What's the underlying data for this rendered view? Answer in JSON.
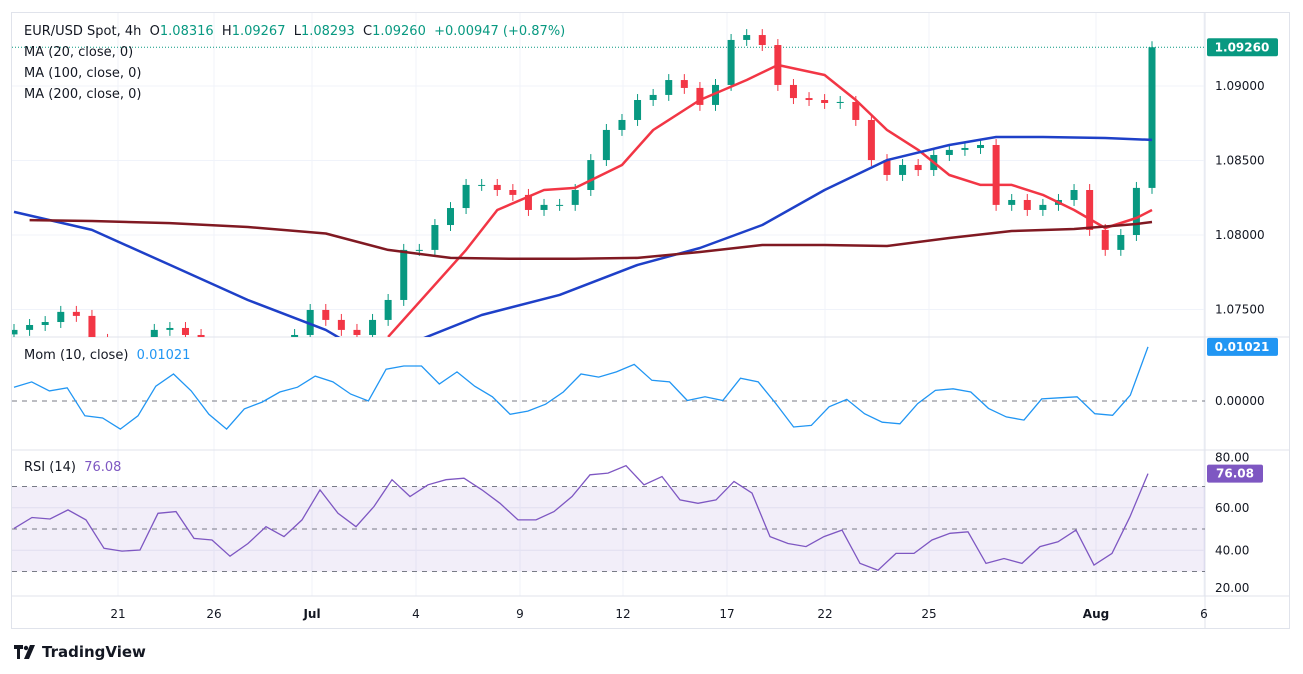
{
  "header": {
    "symbol": "EUR/USD Spot, 4h",
    "open_label": "O",
    "open": "1.08316",
    "high_label": "H",
    "high": "1.09267",
    "low_label": "L",
    "low": "1.08293",
    "close_label": "C",
    "close": "1.09260",
    "change": "+0.00947 (+0.87%)"
  },
  "indicators": {
    "ma20": "MA (20, close, 0)",
    "ma100": "MA (100, close, 0)",
    "ma200": "MA (200, close, 0)",
    "mom_label": "Mom (10, close)",
    "mom_value": "0.01021",
    "rsi_label": "RSI (14)",
    "rsi_value": "76.08"
  },
  "price_axis": {
    "ticks": [
      "1.09000",
      "1.08500",
      "1.08000",
      "1.07500"
    ],
    "last_price": "1.09260"
  },
  "mom_axis": {
    "ticks": [
      "0.00000"
    ],
    "last": "0.01021"
  },
  "rsi_axis": {
    "ticks": [
      "80.00",
      "60.00",
      "40.00",
      "20.00"
    ],
    "last": "76.08"
  },
  "time_axis": [
    "21",
    "26",
    "Jul",
    "4",
    "9",
    "12",
    "17",
    "22",
    "25",
    "Aug",
    "6"
  ],
  "brand": "TradingView",
  "colors": {
    "up": "#089981",
    "down": "#f23645",
    "ma20": "#f23645",
    "ma100": "#1e40c8",
    "ma200": "#801922",
    "momentum": "#2196f3",
    "rsi": "#7e57c2",
    "rsi_band": "#7e57c2"
  },
  "chart_data": [
    {
      "type": "candlestick",
      "title": "EUR/USD Spot, 4h",
      "ylim": [
        1.0731,
        1.0948
      ],
      "y_ticks": [
        1.075,
        1.08,
        1.085,
        1.09
      ],
      "grid": true,
      "closes": [
        1.07363,
        1.07396,
        1.07416,
        1.07484,
        1.07457,
        1.07296,
        1.07262,
        1.07229,
        1.07262,
        1.07363,
        1.07376,
        1.07329,
        1.07262,
        1.07195,
        1.07161,
        1.07195,
        1.07262,
        1.07262,
        1.07329,
        1.07497,
        1.0743,
        1.07363,
        1.07329,
        1.0743,
        1.07564,
        1.079,
        1.079,
        1.08067,
        1.08181,
        1.08336,
        1.08336,
        1.08302,
        1.08269,
        1.08168,
        1.08202,
        1.08202,
        1.08302,
        1.08503,
        1.08705,
        1.08772,
        1.08906,
        1.0894,
        1.0904,
        1.08987,
        1.08873,
        1.09007,
        1.09309,
        1.09342,
        1.09275,
        1.09007,
        1.08919,
        1.08906,
        1.08886,
        1.08893,
        1.08772,
        1.08503,
        1.08403,
        1.0847,
        1.08436,
        1.08537,
        1.08571,
        1.08584,
        1.08604,
        1.08202,
        1.08235,
        1.08168,
        1.08202,
        1.08235,
        1.08302,
        1.08034,
        1.079,
        1.08,
        1.08316,
        1.0926
      ],
      "series": [
        {
          "name": "MA (20, close, 0)",
          "points": [
            [
              24,
              1.07316
            ],
            [
              29,
              1.079
            ],
            [
              31,
              1.08168
            ],
            [
              34,
              1.08302
            ],
            [
              36,
              1.08316
            ],
            [
              39,
              1.0847
            ],
            [
              41,
              1.08705
            ],
            [
              44,
              1.08906
            ],
            [
              47,
              1.0904
            ],
            [
              49,
              1.09141
            ],
            [
              52,
              1.09074
            ],
            [
              54,
              1.08906
            ],
            [
              56,
              1.08705
            ],
            [
              58,
              1.08571
            ],
            [
              60,
              1.08403
            ],
            [
              62,
              1.08336
            ],
            [
              64,
              1.08336
            ],
            [
              66,
              1.08269
            ],
            [
              68,
              1.08168
            ],
            [
              70,
              1.08047
            ],
            [
              72,
              1.08114
            ],
            [
              73,
              1.08168
            ]
          ]
        },
        {
          "name": "MA (100, close, 0)",
          "points": [
            [
              0,
              1.08155
            ],
            [
              5,
              1.08034
            ],
            [
              10,
              1.07799
            ],
            [
              15,
              1.07564
            ],
            [
              20,
              1.07363
            ],
            [
              22,
              1.0724
            ],
            [
              24,
              1.0726
            ],
            [
              26,
              1.07296
            ],
            [
              30,
              1.07463
            ],
            [
              35,
              1.07598
            ],
            [
              40,
              1.07799
            ],
            [
              44,
              1.07913
            ],
            [
              48,
              1.08067
            ],
            [
              52,
              1.08302
            ],
            [
              56,
              1.08503
            ],
            [
              60,
              1.08604
            ],
            [
              63,
              1.08658
            ],
            [
              66,
              1.08658
            ],
            [
              70,
              1.08651
            ],
            [
              73,
              1.08638
            ]
          ]
        },
        {
          "name": "MA (200, close, 0)",
          "points": [
            [
              1,
              1.081
            ],
            [
              5,
              1.08094
            ],
            [
              10,
              1.0808
            ],
            [
              15,
              1.08054
            ],
            [
              20,
              1.0801
            ],
            [
              24,
              1.079
            ],
            [
              28,
              1.07846
            ],
            [
              32,
              1.0784
            ],
            [
              36,
              1.0784
            ],
            [
              40,
              1.07846
            ],
            [
              44,
              1.07886
            ],
            [
              48,
              1.07933
            ],
            [
              52,
              1.07933
            ],
            [
              56,
              1.07926
            ],
            [
              60,
              1.0798
            ],
            [
              64,
              1.08027
            ],
            [
              68,
              1.0804
            ],
            [
              72,
              1.08074
            ],
            [
              73,
              1.08087
            ]
          ]
        }
      ]
    },
    {
      "type": "line",
      "title": "Mom (10, close)",
      "ylim": [
        -0.0087,
        0.0121
      ],
      "reference_line": 0,
      "values": [
        0.0026,
        0.0036,
        0.0019,
        0.0025,
        -0.0028,
        -0.0032,
        -0.0053,
        -0.0028,
        0.0028,
        0.0051,
        0.0019,
        -0.0025,
        -0.0053,
        -0.0015,
        -0.0002,
        0.0017,
        0.0026,
        0.0047,
        0.0036,
        0.0013,
        0,
        0.006,
        0.0066,
        0.0066,
        0.0032,
        0.0055,
        0.0028,
        0.0008,
        -0.0025,
        -0.0019,
        -0.0006,
        0.0017,
        0.0051,
        0.0045,
        0.0055,
        0.0069,
        0.0039,
        0.0036,
        0.0001,
        0.0008,
        0.0001,
        0.0043,
        0.0036,
        -0.0005,
        -0.0049,
        -0.0046,
        -0.0011,
        0.0003,
        -0.0024,
        -0.004,
        -0.0043,
        -0.0005,
        0.002,
        0.0023,
        0.0017,
        -0.0014,
        -0.003,
        -0.0036,
        0.0004,
        0.0006,
        0.0008,
        -0.0024,
        -0.0027,
        0.0011,
        0.01021
      ]
    },
    {
      "type": "line",
      "title": "RSI (14)",
      "ylim": [
        20,
        80
      ],
      "bands": [
        30,
        50,
        70
      ],
      "values": [
        50.3,
        55.4,
        54.7,
        59,
        54.3,
        40.9,
        39.6,
        40.1,
        57.4,
        58.2,
        45.6,
        44.8,
        37.2,
        43.2,
        51.1,
        46.4,
        54.3,
        68.4,
        57.4,
        51.1,
        60.6,
        73.2,
        65.3,
        70.8,
        73.2,
        73.9,
        68.4,
        62.1,
        54.3,
        54.3,
        58.2,
        65.3,
        75.5,
        76.3,
        79.8,
        70.8,
        74.7,
        63.7,
        62.1,
        63.7,
        72.4,
        66.9,
        46.4,
        43.2,
        41.7,
        46.4,
        49.5,
        33.8,
        30.6,
        38.5,
        38.5,
        44.8,
        48,
        48.7,
        33.8,
        36.1,
        33.8,
        41.7,
        44,
        49.5,
        33,
        38.5,
        55.8,
        76.08
      ]
    }
  ]
}
